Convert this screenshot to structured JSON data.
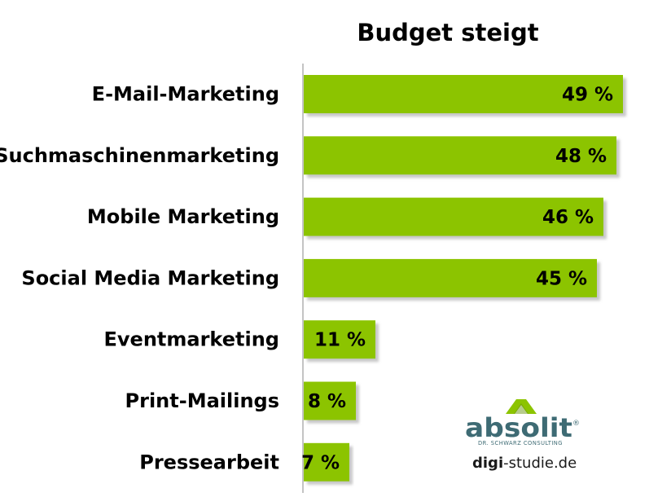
{
  "chart_data": {
    "type": "bar",
    "orientation": "horizontal",
    "title": "Budget steigt",
    "categories": [
      "E-Mail-Marketing",
      "Suchmaschinenmarketing",
      "Mobile Marketing",
      "Social Media Marketing",
      "Eventmarketing",
      "Print-Mailings",
      "Pressearbeit"
    ],
    "values": [
      49,
      48,
      46,
      45,
      11,
      8,
      7
    ],
    "value_labels": [
      "49 %",
      "48 %",
      "46 %",
      "45 %",
      "11 %",
      "8 %",
      "7 %"
    ],
    "xlim": [
      0,
      50
    ],
    "grid": false,
    "legend": "none",
    "bar_color": "#8CC400",
    "shadow_color": "#BDBDBD"
  },
  "branding": {
    "logo_word": "absolit",
    "logo_registered": "®",
    "logo_subtitle": "DR. SCHWARZ CONSULTING",
    "website_bold": "digi",
    "website_rest": "-studie.de",
    "logo_color": "#3E6B74",
    "logo_mark_color": "#8CC400"
  }
}
